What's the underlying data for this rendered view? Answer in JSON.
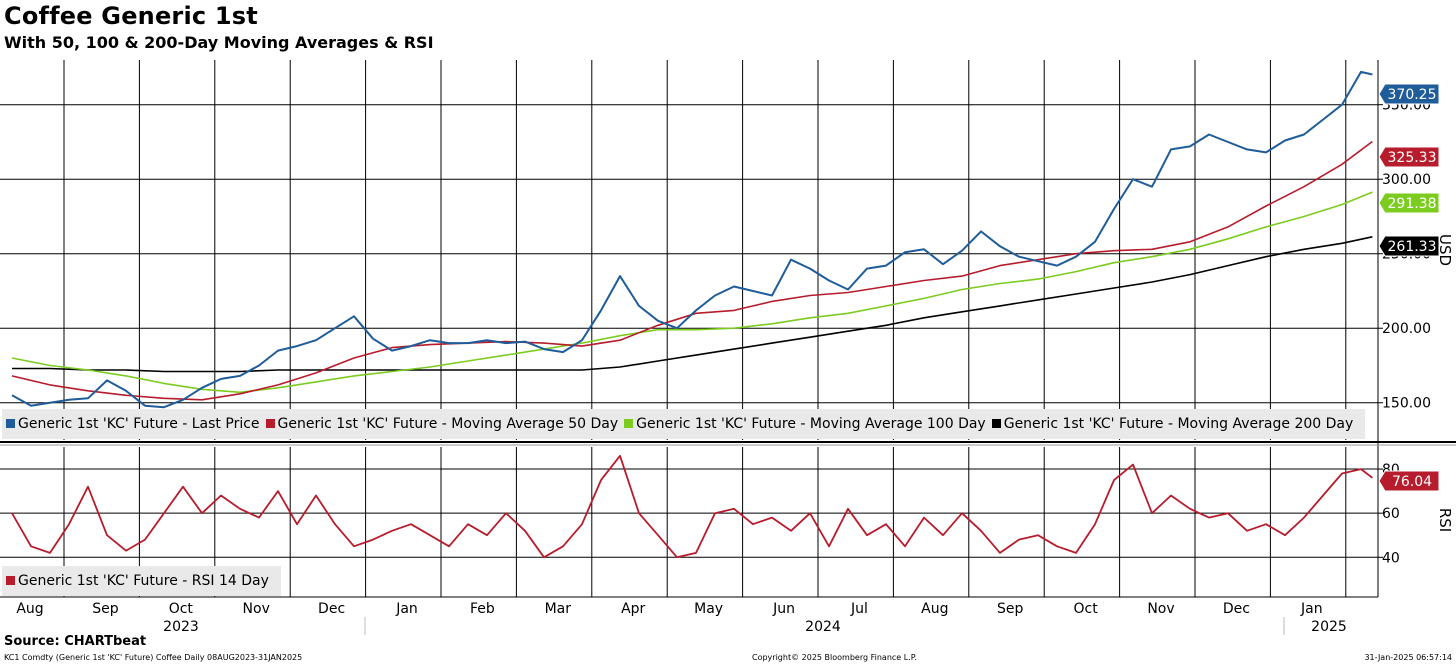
{
  "title": "Coffee Generic 1st",
  "subtitle": "With 50, 100 & 200-Day Moving Averages & RSI",
  "source": "Source: CHARTbeat",
  "footer": {
    "left": "KC1 Comdty (Generic 1st 'KC' Future) Coffee  Daily 08AUG2023-31JAN2025",
    "center": "Copyright© 2025 Bloomberg Finance L.P.",
    "right": "31-Jan-2025 06:57:14"
  },
  "colors": {
    "last_price": "#1f5c9a",
    "ma50": "#b71c2c",
    "ma100": "#7ccc1f",
    "ma200": "#000000",
    "rsi": "#b71c2c"
  },
  "legend_main": [
    {
      "label": "Generic 1st 'KC' Future - Last Price",
      "color": "#1f5c9a"
    },
    {
      "label": "Generic 1st 'KC' Future - Moving Average 50 Day",
      "color": "#b71c2c"
    },
    {
      "label": "Generic 1st 'KC' Future - Moving Average 100 Day",
      "color": "#7ccc1f"
    },
    {
      "label": "Generic 1st 'KC' Future - Moving Average 200 Day",
      "color": "#000000"
    }
  ],
  "legend_rsi": [
    {
      "label": "Generic 1st 'KC' Future - RSI 14 Day",
      "color": "#b71c2c"
    }
  ],
  "chart_data": [
    {
      "type": "line",
      "title": "Coffee Generic 1st",
      "ylabel": "USD",
      "ylim": [
        125,
        380
      ],
      "yticks": [
        "150.00",
        "200.00",
        "250.00",
        "300.00",
        "350.00"
      ],
      "ytick_values": [
        150,
        200,
        250,
        300,
        350
      ],
      "x_range": [
        0,
        18
      ],
      "months": [
        "Aug",
        "Sep",
        "Oct",
        "Nov",
        "Dec",
        "Jan",
        "Feb",
        "Mar",
        "Apr",
        "May",
        "Jun",
        "Jul",
        "Aug",
        "Sep",
        "Oct",
        "Nov",
        "Dec",
        "Jan"
      ],
      "years": [
        {
          "label": "2023",
          "x": 2.3
        },
        {
          "label": "2024",
          "x": 10.5
        },
        {
          "label": "2025",
          "x": 17.3
        }
      ],
      "series": [
        {
          "name": "Generic 1st 'KC' Future - Last Price",
          "color": "#1f5c9a",
          "last_label": "370.25",
          "x": [
            0,
            0.25,
            0.5,
            0.75,
            1,
            1.25,
            1.5,
            1.75,
            2,
            2.25,
            2.5,
            2.75,
            3,
            3.25,
            3.5,
            3.75,
            4,
            4.25,
            4.5,
            4.75,
            5,
            5.25,
            5.5,
            5.75,
            6,
            6.25,
            6.5,
            6.75,
            7,
            7.25,
            7.5,
            7.75,
            8,
            8.25,
            8.5,
            8.75,
            9,
            9.25,
            9.5,
            9.75,
            10,
            10.25,
            10.5,
            10.75,
            11,
            11.25,
            11.5,
            11.75,
            12,
            12.25,
            12.5,
            12.75,
            13,
            13.25,
            13.5,
            13.75,
            14,
            14.25,
            14.5,
            14.75,
            15,
            15.25,
            15.5,
            15.75,
            16,
            16.25,
            16.5,
            16.75,
            17,
            17.25,
            17.5,
            17.75,
            17.9
          ],
          "values": [
            155,
            148,
            150,
            152,
            153,
            165,
            158,
            148,
            147,
            152,
            160,
            166,
            168,
            175,
            185,
            188,
            192,
            200,
            208,
            193,
            185,
            188,
            192,
            190,
            190,
            192,
            190,
            191,
            186,
            184,
            192,
            212,
            235,
            215,
            205,
            200,
            212,
            222,
            228,
            225,
            222,
            246,
            240,
            232,
            226,
            240,
            242,
            251,
            253,
            243,
            252,
            265,
            255,
            248,
            245,
            242,
            248,
            258,
            280,
            300,
            295,
            320,
            322,
            330,
            325,
            320,
            318,
            326,
            330,
            340,
            350,
            372,
            370.25
          ]
        },
        {
          "name": "Generic 1st 'KC' Future - Moving Average 50 Day",
          "color": "#b71c2c",
          "last_label": "325.33",
          "x": [
            0,
            0.5,
            1,
            1.5,
            2,
            2.5,
            3,
            3.5,
            4,
            4.5,
            5,
            5.5,
            6,
            6.5,
            7,
            7.5,
            8,
            8.5,
            9,
            9.5,
            10,
            10.5,
            11,
            11.5,
            12,
            12.5,
            13,
            13.5,
            14,
            14.5,
            15,
            15.5,
            16,
            16.5,
            17,
            17.5,
            17.9
          ],
          "values": [
            168,
            162,
            158,
            155,
            153,
            152,
            156,
            162,
            170,
            180,
            187,
            189,
            190,
            191,
            190,
            188,
            192,
            202,
            210,
            212,
            218,
            222,
            224,
            228,
            232,
            235,
            242,
            246,
            250,
            252,
            253,
            258,
            268,
            282,
            295,
            310,
            325.33
          ]
        },
        {
          "name": "Generic 1st 'KC' Future - Moving Average 100 Day",
          "color": "#7ccc1f",
          "last_label": "291.38",
          "x": [
            0,
            0.5,
            1,
            1.5,
            2,
            2.5,
            3,
            3.5,
            4,
            4.5,
            5,
            5.5,
            6,
            6.5,
            7,
            7.5,
            8,
            8.5,
            9,
            9.5,
            10,
            10.5,
            11,
            11.5,
            12,
            12.5,
            13,
            13.5,
            14,
            14.5,
            15,
            15.5,
            16,
            16.5,
            17,
            17.5,
            17.9
          ],
          "values": [
            180,
            175,
            172,
            168,
            163,
            159,
            157,
            160,
            164,
            168,
            171,
            174,
            178,
            182,
            186,
            190,
            195,
            199,
            199,
            200,
            203,
            207,
            210,
            215,
            220,
            226,
            230,
            233,
            238,
            244,
            248,
            253,
            260,
            268,
            275,
            283,
            291.38
          ]
        },
        {
          "name": "Generic 1st 'KC' Future - Moving Average 200 Day",
          "color": "#000000",
          "last_label": "261.33",
          "x": [
            0,
            0.5,
            1,
            1.5,
            2,
            2.5,
            3,
            3.5,
            4,
            4.5,
            5,
            5.5,
            6,
            6.5,
            7,
            7.5,
            8,
            8.5,
            9,
            9.5,
            10,
            10.5,
            11,
            11.5,
            12,
            12.5,
            13,
            13.5,
            14,
            14.5,
            15,
            15.5,
            16,
            16.5,
            17,
            17.5,
            17.9
          ],
          "values": [
            173,
            173,
            172,
            172,
            171,
            171,
            171,
            172,
            172,
            172,
            172,
            172,
            172,
            172,
            172,
            172,
            174,
            178,
            182,
            186,
            190,
            194,
            198,
            202,
            207,
            211,
            215,
            219,
            223,
            227,
            231,
            236,
            242,
            248,
            253,
            257,
            261.33
          ]
        }
      ]
    },
    {
      "type": "line",
      "title": "RSI",
      "ylabel": "RSI",
      "ylim": [
        22,
        90
      ],
      "yticks": [
        "40",
        "60",
        "80"
      ],
      "ytick_values": [
        40,
        60,
        80
      ],
      "x_range": [
        0,
        18
      ],
      "series": [
        {
          "name": "Generic 1st 'KC' Future - RSI 14 Day",
          "color": "#b71c2c",
          "last_label": "76.04",
          "x": [
            0,
            0.25,
            0.5,
            0.75,
            1,
            1.25,
            1.5,
            1.75,
            2,
            2.25,
            2.5,
            2.75,
            3,
            3.25,
            3.5,
            3.75,
            4,
            4.25,
            4.5,
            4.75,
            5,
            5.25,
            5.5,
            5.75,
            6,
            6.25,
            6.5,
            6.75,
            7,
            7.25,
            7.5,
            7.75,
            8,
            8.25,
            8.5,
            8.75,
            9,
            9.25,
            9.5,
            9.75,
            10,
            10.25,
            10.5,
            10.75,
            11,
            11.25,
            11.5,
            11.75,
            12,
            12.25,
            12.5,
            12.75,
            13,
            13.25,
            13.5,
            13.75,
            14,
            14.25,
            14.5,
            14.75,
            15,
            15.25,
            15.5,
            15.75,
            16,
            16.25,
            16.5,
            16.75,
            17,
            17.25,
            17.5,
            17.75,
            17.9
          ],
          "values": [
            60,
            45,
            42,
            55,
            72,
            50,
            43,
            48,
            60,
            72,
            60,
            68,
            62,
            58,
            70,
            55,
            68,
            55,
            45,
            48,
            52,
            55,
            50,
            45,
            55,
            50,
            60,
            52,
            40,
            45,
            55,
            75,
            86,
            60,
            50,
            40,
            42,
            60,
            62,
            55,
            58,
            52,
            60,
            45,
            62,
            50,
            55,
            45,
            58,
            50,
            60,
            52,
            42,
            48,
            50,
            45,
            42,
            55,
            75,
            82,
            60,
            68,
            62,
            58,
            60,
            52,
            55,
            50,
            58,
            68,
            78,
            80,
            76.04
          ]
        }
      ]
    }
  ]
}
